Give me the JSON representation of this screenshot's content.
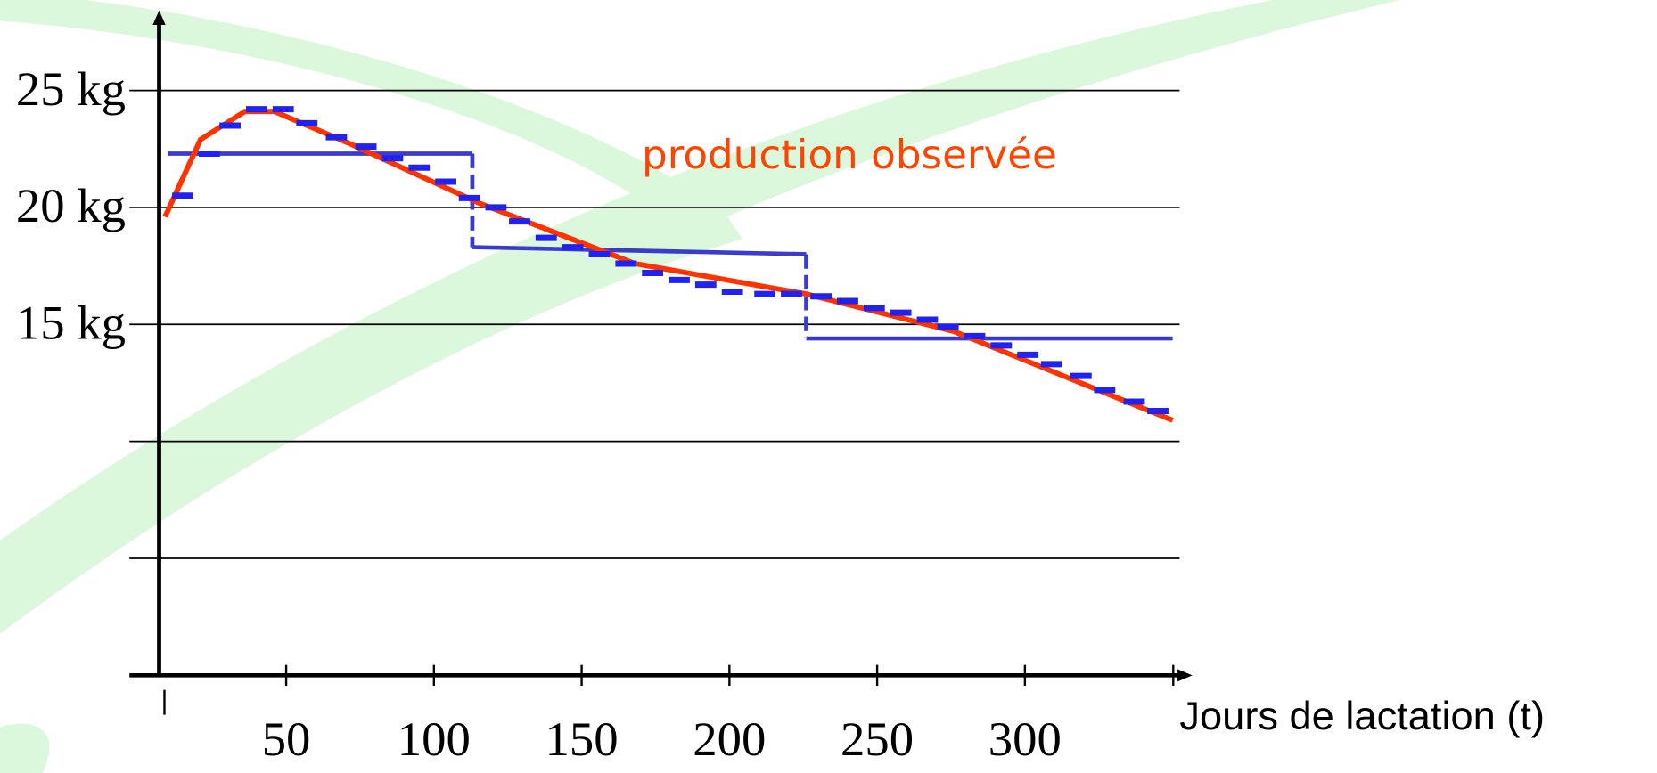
{
  "chart_data": {
    "type": "line",
    "annotation": "production observée",
    "xlabel": "Jours de lactation (t)",
    "xlim": [
      7,
      352
    ],
    "ylim": [
      0,
      28.2
    ],
    "xticks": [
      50,
      100,
      150,
      200,
      250,
      300
    ],
    "yticks": [
      {
        "value": 15,
        "label": "15 kg"
      },
      {
        "value": 20,
        "label": "20 kg"
      },
      {
        "value": 25,
        "label": "25 kg"
      }
    ],
    "gridlines": [
      5,
      10,
      15,
      20,
      25
    ],
    "series": [
      {
        "style": "line",
        "color": "#ff3300",
        "x": [
          9,
          21,
          36,
          46,
          72,
          115,
          168,
          226,
          276,
          350
        ],
        "values": [
          19.6,
          22.9,
          24.1,
          24.1,
          22.7,
          20.2,
          17.6,
          16.3,
          14.7,
          10.9
        ]
      },
      {
        "style": "dash",
        "color": "#2222ee",
        "x": [
          15,
          24,
          31,
          40,
          49,
          57,
          67,
          77,
          86,
          95,
          104,
          112,
          121,
          129,
          138,
          147,
          156,
          165,
          174,
          183,
          192,
          201,
          212,
          221,
          231,
          240,
          249,
          258,
          267,
          274,
          283,
          292,
          301,
          309,
          319,
          327,
          337,
          345
        ],
        "values": [
          20.5,
          22.3,
          23.5,
          24.2,
          24.2,
          23.6,
          23.0,
          22.6,
          22.1,
          21.7,
          21.1,
          20.4,
          20.0,
          19.4,
          18.7,
          18.3,
          18.0,
          17.6,
          17.2,
          16.9,
          16.7,
          16.4,
          16.3,
          16.3,
          16.2,
          16.0,
          15.7,
          15.5,
          15.2,
          14.9,
          14.5,
          14.1,
          13.7,
          13.3,
          12.8,
          12.2,
          11.7,
          11.3
        ]
      },
      {
        "style": "step",
        "color": "#3b3bd0",
        "x": [
          10,
          113,
          113,
          226,
          226,
          350
        ],
        "values": [
          22.3,
          22.3,
          18.3,
          18.0,
          14.4,
          14.4
        ]
      }
    ]
  }
}
